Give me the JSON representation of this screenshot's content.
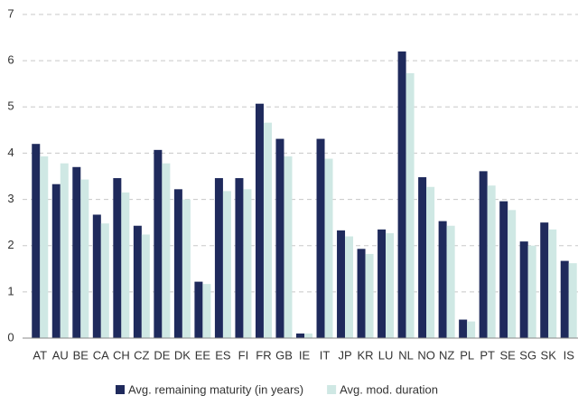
{
  "chart_data": {
    "type": "bar",
    "categories": [
      "AT",
      "AU",
      "BE",
      "CA",
      "CH",
      "CZ",
      "DE",
      "DK",
      "EE",
      "ES",
      "FI",
      "FR",
      "GB",
      "IE",
      "IT",
      "JP",
      "KR",
      "LU",
      "NL",
      "NO",
      "NZ",
      "PL",
      "PT",
      "SE",
      "SG",
      "SK",
      "IS"
    ],
    "series": [
      {
        "name": "Avg. remaining maturity (in years)",
        "color": "#1f2a5c",
        "values": [
          4.2,
          3.33,
          3.7,
          2.67,
          3.46,
          2.43,
          4.07,
          3.22,
          1.22,
          3.46,
          3.46,
          5.07,
          4.31,
          0.1,
          4.31,
          2.33,
          1.93,
          2.35,
          6.2,
          3.48,
          2.53,
          0.4,
          3.61,
          2.96,
          2.09,
          2.5,
          1.67
        ]
      },
      {
        "name": "Avg. mod. duration",
        "color": "#cfe8e4",
        "values": [
          3.93,
          3.78,
          3.43,
          2.48,
          3.15,
          2.24,
          3.78,
          3.0,
          1.17,
          3.18,
          3.22,
          4.66,
          3.93,
          0.1,
          3.88,
          2.2,
          1.82,
          2.27,
          5.73,
          3.27,
          2.43,
          0.36,
          3.3,
          2.77,
          2.0,
          2.35,
          1.62
        ]
      }
    ],
    "ylim": [
      0,
      7
    ],
    "yticks": [
      0,
      1,
      2,
      3,
      4,
      5,
      6,
      7
    ],
    "grid": true,
    "legend": "bottom"
  }
}
